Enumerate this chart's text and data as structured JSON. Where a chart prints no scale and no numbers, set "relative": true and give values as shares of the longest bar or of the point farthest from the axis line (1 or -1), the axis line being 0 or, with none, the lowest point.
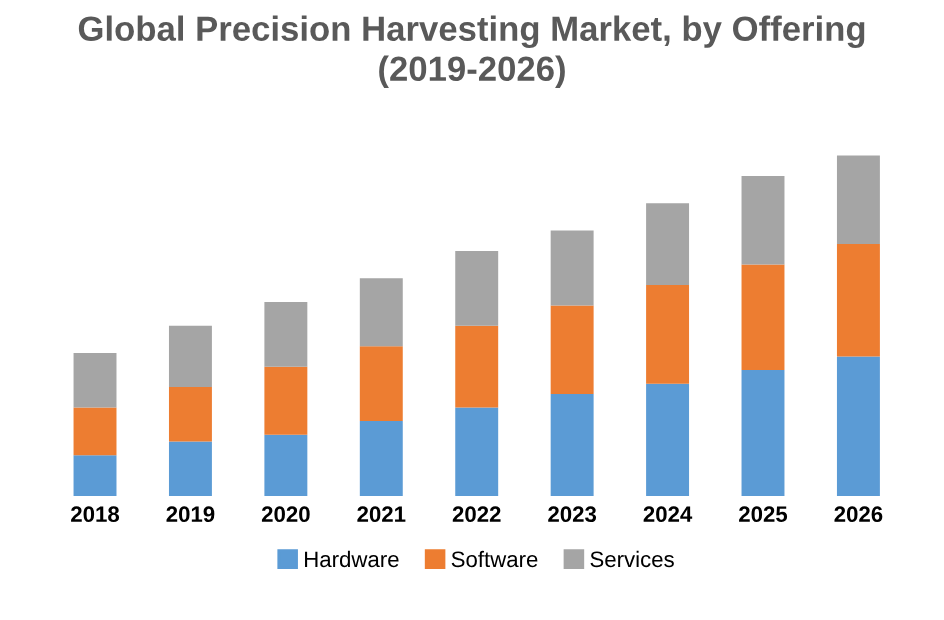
{
  "chart_data": {
    "type": "bar",
    "title": "Global Precision Harvesting Market, by Offering\n(2019-2026)",
    "categories": [
      "2018",
      "2019",
      "2020",
      "2021",
      "2022",
      "2023",
      "2024",
      "2025",
      "2026"
    ],
    "stacked": true,
    "relative": true,
    "legend": "bottom",
    "grid": false,
    "series": [
      {
        "name": "Hardware",
        "color": "#5b9bd5",
        "values": [
          0.12,
          0.16,
          0.18,
          0.22,
          0.26,
          0.3,
          0.33,
          0.37,
          0.41
        ]
      },
      {
        "name": "Software",
        "color": "#ed7d31",
        "values": [
          0.14,
          0.16,
          0.2,
          0.22,
          0.24,
          0.26,
          0.29,
          0.31,
          0.33
        ]
      },
      {
        "name": "Services",
        "color": "#a5a5a5",
        "values": [
          0.16,
          0.18,
          0.19,
          0.2,
          0.22,
          0.22,
          0.24,
          0.26,
          0.26
        ]
      }
    ]
  }
}
